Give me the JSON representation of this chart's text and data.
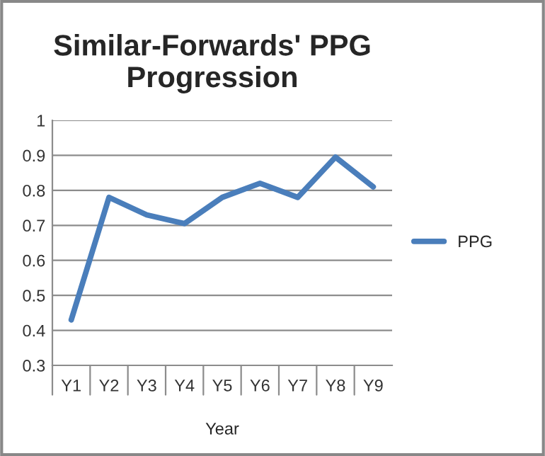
{
  "chart_data": {
    "type": "line",
    "title": "Similar-Forwards' PPG\nProgression",
    "xlabel": "Year",
    "categories": [
      "Y1",
      "Y2",
      "Y3",
      "Y4",
      "Y5",
      "Y6",
      "Y7",
      "Y8",
      "Y9"
    ],
    "series": [
      {
        "name": "PPG",
        "color": "#4a7ebb",
        "values": [
          0.43,
          0.78,
          0.73,
          0.705,
          0.78,
          0.82,
          0.78,
          0.895,
          0.81
        ]
      }
    ],
    "ylim": [
      0.3,
      1
    ],
    "yticks": [
      0.3,
      0.4,
      0.5,
      0.6,
      0.7,
      0.8,
      0.9,
      1
    ],
    "grid": "y",
    "legend": "right",
    "marker": "none",
    "line_style": "solid"
  }
}
